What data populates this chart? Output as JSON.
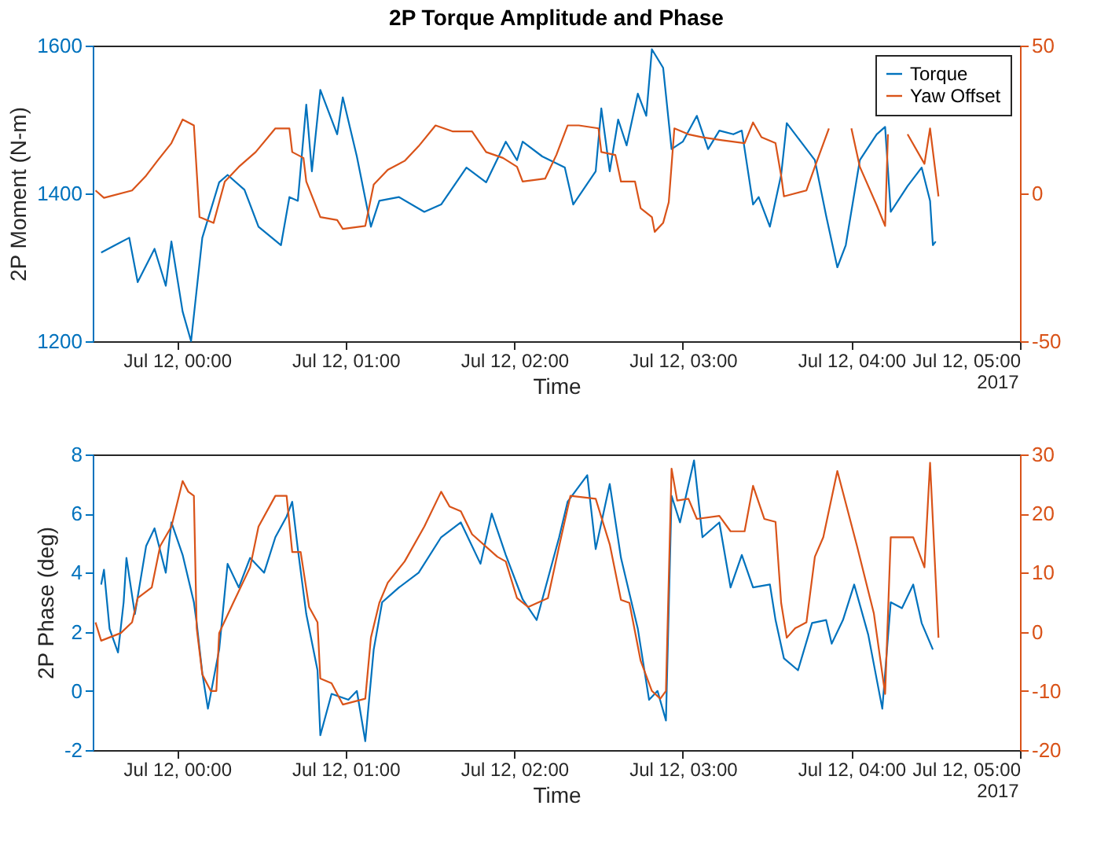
{
  "chart_data": [
    {
      "type": "line",
      "title": "2P Torque Amplitude and Phase",
      "xlabel": "Time",
      "ylabel": "2P Moment (N-m)",
      "legend": "top right",
      "grid": false,
      "annotations": [
        "2017"
      ],
      "xlim": [
        "2017-07-11T23:30",
        "2017-07-12T05:00"
      ],
      "xticks": [
        {
          "value": "2017-07-12T00:00",
          "label": "Jul 12, 00:00"
        },
        {
          "value": "2017-07-12T01:00",
          "label": "Jul 12, 01:00"
        },
        {
          "value": "2017-07-12T02:00",
          "label": "Jul 12, 02:00"
        },
        {
          "value": "2017-07-12T03:00",
          "label": "Jul 12, 03:00"
        },
        {
          "value": "2017-07-12T04:00",
          "label": "Jul 12, 04:00"
        },
        {
          "value": "2017-07-12T05:00",
          "label": "Jul 12, 05:00"
        }
      ],
      "ylim": [
        1200,
        1600
      ],
      "yticks": [
        1200,
        1400,
        1600
      ],
      "y2lim": [
        -50,
        50
      ],
      "y2ticks": [
        -50,
        0,
        50
      ],
      "series": [
        {
          "name": "Torque",
          "color": "#0072bd",
          "x": [
            "2017-07-11T23:33",
            "2017-07-11T23:38",
            "2017-07-11T23:43",
            "2017-07-11T23:46",
            "2017-07-11T23:52",
            "2017-07-11T23:56",
            "2017-07-11T23:58",
            "2017-07-12T00:02",
            "2017-07-12T00:05",
            "2017-07-12T00:09",
            "2017-07-12T00:15",
            "2017-07-12T00:18",
            "2017-07-12T00:24",
            "2017-07-12T00:29",
            "2017-07-12T00:37",
            "2017-07-12T00:40",
            "2017-07-12T00:43",
            "2017-07-12T00:46",
            "2017-07-12T00:48",
            "2017-07-12T00:51",
            "2017-07-12T00:57",
            "2017-07-12T00:59",
            "2017-07-12T01:04",
            "2017-07-12T01:09",
            "2017-07-12T01:12",
            "2017-07-12T01:19",
            "2017-07-12T01:28",
            "2017-07-12T01:34",
            "2017-07-12T01:43",
            "2017-07-12T01:50",
            "2017-07-12T01:57",
            "2017-07-12T02:01",
            "2017-07-12T02:03",
            "2017-07-12T02:10",
            "2017-07-12T02:18",
            "2017-07-12T02:21",
            "2017-07-12T02:29",
            "2017-07-12T02:31",
            "2017-07-12T02:34",
            "2017-07-12T02:37",
            "2017-07-12T02:40",
            "2017-07-12T02:44",
            "2017-07-12T02:47",
            "2017-07-12T02:49",
            "2017-07-12T02:53",
            "2017-07-12T02:56",
            "2017-07-12T03:00",
            "2017-07-12T03:05",
            "2017-07-12T03:09",
            "2017-07-12T03:13",
            "2017-07-12T03:18",
            "2017-07-12T03:21",
            "2017-07-12T03:25",
            "2017-07-12T03:27",
            "2017-07-12T03:31",
            "2017-07-12T03:35",
            "2017-07-12T03:37",
            "2017-07-12T03:42",
            "2017-07-12T03:47",
            "2017-07-12T03:51",
            "2017-07-12T03:55",
            "2017-07-12T03:58",
            "2017-07-12T04:03",
            "2017-07-12T04:09",
            "2017-07-12T04:12",
            "2017-07-12T04:14",
            "2017-07-12T04:20",
            "2017-07-12T04:25",
            "2017-07-12T04:28",
            "2017-07-12T04:29",
            "2017-07-12T04:30"
          ],
          "values": [
            1320,
            1330,
            1340,
            1280,
            1325,
            1275,
            1335,
            1240,
            1200,
            1340,
            1415,
            1425,
            1405,
            1355,
            1330,
            1395,
            1390,
            1520,
            1430,
            1540,
            1480,
            1530,
            1450,
            1355,
            1390,
            1395,
            1375,
            1385,
            1435,
            1415,
            1470,
            1445,
            1470,
            1450,
            1435,
            1385,
            1430,
            1515,
            1430,
            1500,
            1465,
            1535,
            1505,
            1595,
            1570,
            1460,
            1470,
            1505,
            1460,
            1485,
            1480,
            1485,
            1385,
            1395,
            1355,
            1425,
            1495,
            1470,
            1445,
            1370,
            1300,
            1330,
            1445,
            1480,
            1490,
            1375,
            1410,
            1435,
            1390,
            1330,
            1335
          ]
        },
        {
          "name": "Yaw Offset",
          "color": "#d95319",
          "axis": "y2",
          "x": [
            "2017-07-11T23:31",
            "2017-07-11T23:34",
            "2017-07-11T23:44",
            "2017-07-11T23:49",
            "2017-07-11T23:53",
            "2017-07-11T23:58",
            "2017-07-12T00:02",
            "2017-07-12T00:06",
            "2017-07-12T00:08",
            "2017-07-12T00:13",
            "2017-07-12T00:17",
            "2017-07-12T00:22",
            "2017-07-12T00:28",
            "2017-07-12T00:35",
            "2017-07-12T00:40",
            "2017-07-12T00:41",
            "2017-07-12T00:45",
            "2017-07-12T00:46",
            "2017-07-12T00:51",
            "2017-07-12T00:57",
            "2017-07-12T00:59",
            "2017-07-12T01:07",
            "2017-07-12T01:10",
            "2017-07-12T01:15",
            "2017-07-12T01:21",
            "2017-07-12T01:26",
            "2017-07-12T01:32",
            "2017-07-12T01:38",
            "2017-07-12T01:45",
            "2017-07-12T01:50",
            "2017-07-12T01:56",
            "2017-07-12T02:01",
            "2017-07-12T02:03",
            "2017-07-12T02:11",
            "2017-07-12T02:15",
            "2017-07-12T02:19",
            "2017-07-12T02:23",
            "2017-07-12T02:30",
            "2017-07-12T02:31",
            "2017-07-12T02:36",
            "2017-07-12T02:38",
            "2017-07-12T02:43",
            "2017-07-12T02:45",
            "2017-07-12T02:49",
            "2017-07-12T02:50",
            "2017-07-12T02:53",
            "2017-07-12T02:55",
            "2017-07-12T02:57",
            "2017-07-12T03:02",
            "2017-07-12T03:07",
            "2017-07-12T03:14",
            "2017-07-12T03:22",
            "2017-07-12T03:25",
            "2017-07-12T03:28",
            "2017-07-12T03:33",
            "2017-07-12T03:35",
            "2017-07-12T03:36",
            "2017-07-12T03:44",
            "2017-07-12T03:47",
            "2017-07-12T03:52",
            "2017-07-12T03:56",
            "2017-07-12T04:00",
            "2017-07-12T04:03",
            "2017-07-12T04:09",
            "2017-07-12T04:12",
            "2017-07-12T04:13",
            "2017-07-12T04:16",
            "2017-07-12T04:20",
            "2017-07-12T04:26",
            "2017-07-12T04:28",
            "2017-07-12T04:31"
          ],
          "values": [
            1,
            -1.5,
            1,
            6,
            11,
            17,
            25,
            23,
            -8,
            -10,
            4,
            9,
            14,
            22,
            22,
            14,
            12,
            4,
            -8,
            -9,
            -12,
            -11,
            3,
            8,
            11,
            16,
            23,
            21,
            21,
            14,
            12,
            9,
            4,
            5,
            13,
            23,
            23,
            22,
            14,
            13,
            4,
            4,
            -5,
            -8,
            -13,
            -10,
            -3,
            22,
            20,
            19,
            18,
            17,
            24,
            19,
            17,
            6,
            -1,
            1,
            9,
            22,
            null,
            22,
            9,
            -4,
            -11,
            20,
            null,
            20,
            10,
            22,
            -1
          ]
        }
      ]
    },
    {
      "type": "line",
      "xlabel": "Time",
      "ylabel": "2P Phase (deg)",
      "legend": "top right",
      "grid": false,
      "annotations": [
        "2017"
      ],
      "xlim": [
        "2017-07-11T23:30",
        "2017-07-12T05:00"
      ],
      "xticks": [
        {
          "value": "2017-07-12T00:00",
          "label": "Jul 12, 00:00"
        },
        {
          "value": "2017-07-12T01:00",
          "label": "Jul 12, 01:00"
        },
        {
          "value": "2017-07-12T02:00",
          "label": "Jul 12, 02:00"
        },
        {
          "value": "2017-07-12T03:00",
          "label": "Jul 12, 03:00"
        },
        {
          "value": "2017-07-12T04:00",
          "label": "Jul 12, 04:00"
        },
        {
          "value": "2017-07-12T05:00",
          "label": "Jul 12, 05:00"
        }
      ],
      "ylim": [
        -2,
        8
      ],
      "yticks": [
        -2,
        0,
        2,
        4,
        6,
        8
      ],
      "y2lim": [
        -20,
        30
      ],
      "y2ticks": [
        -20,
        -10,
        0,
        10,
        20,
        30
      ],
      "series": [
        {
          "name": "Torque",
          "color": "#0072bd",
          "x": [
            "2017-07-11T23:33",
            "2017-07-11T23:34",
            "2017-07-11T23:36",
            "2017-07-11T23:39",
            "2017-07-11T23:41",
            "2017-07-11T23:42",
            "2017-07-11T23:45",
            "2017-07-11T23:49",
            "2017-07-11T23:52",
            "2017-07-11T23:56",
            "2017-07-11T23:58",
            "2017-07-12T00:02",
            "2017-07-12T00:06",
            "2017-07-12T00:07",
            "2017-07-12T00:09",
            "2017-07-12T00:11",
            "2017-07-12T00:15",
            "2017-07-12T00:18",
            "2017-07-12T00:22",
            "2017-07-12T00:26",
            "2017-07-12T00:31",
            "2017-07-12T00:35",
            "2017-07-12T00:39",
            "2017-07-12T00:41",
            "2017-07-12T00:43",
            "2017-07-12T00:46",
            "2017-07-12T00:50",
            "2017-07-12T00:51",
            "2017-07-12T00:55",
            "2017-07-12T01:01",
            "2017-07-12T01:04",
            "2017-07-12T01:07",
            "2017-07-12T01:10",
            "2017-07-12T01:13",
            "2017-07-12T01:19",
            "2017-07-12T01:26",
            "2017-07-12T01:34",
            "2017-07-12T01:41",
            "2017-07-12T01:48",
            "2017-07-12T01:52",
            "2017-07-12T01:57",
            "2017-07-12T02:03",
            "2017-07-12T02:08",
            "2017-07-12T02:12",
            "2017-07-12T02:16",
            "2017-07-12T02:19",
            "2017-07-12T02:26",
            "2017-07-12T02:29",
            "2017-07-12T02:34",
            "2017-07-12T02:38",
            "2017-07-12T02:44",
            "2017-07-12T02:48",
            "2017-07-12T02:51",
            "2017-07-12T02:54",
            "2017-07-12T02:56",
            "2017-07-12T02:59",
            "2017-07-12T03:04",
            "2017-07-12T03:07",
            "2017-07-12T03:13",
            "2017-07-12T03:17",
            "2017-07-12T03:21",
            "2017-07-12T03:25",
            "2017-07-12T03:31",
            "2017-07-12T03:33",
            "2017-07-12T03:36",
            "2017-07-12T03:41",
            "2017-07-12T03:46",
            "2017-07-12T03:51",
            "2017-07-12T03:53",
            "2017-07-12T03:57",
            "2017-07-12T04:01",
            "2017-07-12T04:06",
            "2017-07-12T04:11",
            "2017-07-12T04:14",
            "2017-07-12T04:18",
            "2017-07-12T04:22",
            "2017-07-12T04:25",
            "2017-07-12T04:29"
          ],
          "values": [
            3.6,
            4.1,
            2.1,
            1.3,
            3.0,
            4.5,
            2.6,
            4.9,
            5.5,
            4.0,
            5.7,
            4.6,
            3.0,
            2.3,
            0.6,
            -0.6,
            1.4,
            4.3,
            3.5,
            4.5,
            4.0,
            5.2,
            5.9,
            6.4,
            4.8,
            2.6,
            0.7,
            -1.5,
            -0.1,
            -0.3,
            0.0,
            -1.7,
            1.4,
            3.0,
            3.5,
            4.0,
            5.2,
            5.7,
            4.3,
            6.0,
            4.6,
            3.1,
            2.4,
            3.8,
            5.2,
            6.4,
            7.3,
            4.8,
            7.0,
            4.5,
            2.1,
            -0.3,
            0.0,
            -1.0,
            6.6,
            5.7,
            7.8,
            5.2,
            5.7,
            3.5,
            4.6,
            3.5,
            3.6,
            2.4,
            1.1,
            0.7,
            2.3,
            2.4,
            1.6,
            2.4,
            3.6,
            1.9,
            -0.6,
            3.0,
            2.8,
            3.6,
            2.3,
            1.4
          ]
        },
        {
          "name": "Yaw Offset",
          "color": "#d95319",
          "axis": "y2",
          "x": [
            "2017-07-11T23:31",
            "2017-07-11T23:33",
            "2017-07-11T23:40",
            "2017-07-11T23:44",
            "2017-07-11T23:46",
            "2017-07-11T23:51",
            "2017-07-11T23:54",
            "2017-07-11T23:58",
            "2017-07-12T00:02",
            "2017-07-12T00:04",
            "2017-07-12T00:06",
            "2017-07-12T00:07",
            "2017-07-12T00:09",
            "2017-07-12T00:12",
            "2017-07-12T00:14",
            "2017-07-12T00:15",
            "2017-07-12T00:20",
            "2017-07-12T00:26",
            "2017-07-12T00:29",
            "2017-07-12T00:35",
            "2017-07-12T00:39",
            "2017-07-12T00:41",
            "2017-07-12T00:44",
            "2017-07-12T00:47",
            "2017-07-12T00:50",
            "2017-07-12T00:51",
            "2017-07-12T00:55",
            "2017-07-12T00:59",
            "2017-07-12T01:07",
            "2017-07-12T01:09",
            "2017-07-12T01:12",
            "2017-07-12T01:15",
            "2017-07-12T01:21",
            "2017-07-12T01:28",
            "2017-07-12T01:34",
            "2017-07-12T01:37",
            "2017-07-12T01:41",
            "2017-07-12T01:45",
            "2017-07-12T01:54",
            "2017-07-12T01:57",
            "2017-07-12T02:01",
            "2017-07-12T02:05",
            "2017-07-12T02:12",
            "2017-07-12T02:16",
            "2017-07-12T02:20",
            "2017-07-12T02:29",
            "2017-07-12T02:34",
            "2017-07-12T02:38",
            "2017-07-12T02:41",
            "2017-07-12T02:45",
            "2017-07-12T02:49",
            "2017-07-12T02:52",
            "2017-07-12T02:54",
            "2017-07-12T02:56",
            "2017-07-12T02:58",
            "2017-07-12T03:02",
            "2017-07-12T03:05",
            "2017-07-12T03:13",
            "2017-07-12T03:17",
            "2017-07-12T03:22",
            "2017-07-12T03:25",
            "2017-07-12T03:29",
            "2017-07-12T03:33",
            "2017-07-12T03:35",
            "2017-07-12T03:37",
            "2017-07-12T03:40",
            "2017-07-12T03:44",
            "2017-07-12T03:47",
            "2017-07-12T03:50",
            "2017-07-12T03:55",
            "2017-07-12T04:02",
            "2017-07-12T04:08",
            "2017-07-12T04:12",
            "2017-07-12T04:14",
            "2017-07-12T04:22",
            "2017-07-12T04:26",
            "2017-07-12T04:28",
            "2017-07-12T04:31"
          ],
          "values": [
            1.6,
            -1.5,
            -0.2,
            1.6,
            5.7,
            7.5,
            14.5,
            17.8,
            25.5,
            23.7,
            23,
            0.6,
            -7.2,
            -10,
            -10,
            -0.2,
            4.9,
            10.9,
            17.8,
            23,
            23,
            13.5,
            13.5,
            4.2,
            1.6,
            -7.9,
            -8.7,
            -12.3,
            -11.3,
            -1.0,
            4.9,
            8.3,
            11.9,
            17.8,
            23.7,
            21.2,
            20.4,
            16.5,
            12.7,
            11.9,
            5.7,
            4.2,
            5.7,
            14.5,
            23,
            22.5,
            14.8,
            5.4,
            4.9,
            -4.9,
            -10,
            -11.3,
            -10,
            27.6,
            22.2,
            22.5,
            19.1,
            19.6,
            17,
            17,
            24.7,
            19.1,
            18.6,
            4.9,
            -1.0,
            0.6,
            1.6,
            12.7,
            16.0,
            27.2,
            14.5,
            3.1,
            -10.5,
            16,
            16,
            10.9,
            28.6,
            -1.0
          ]
        }
      ]
    }
  ]
}
